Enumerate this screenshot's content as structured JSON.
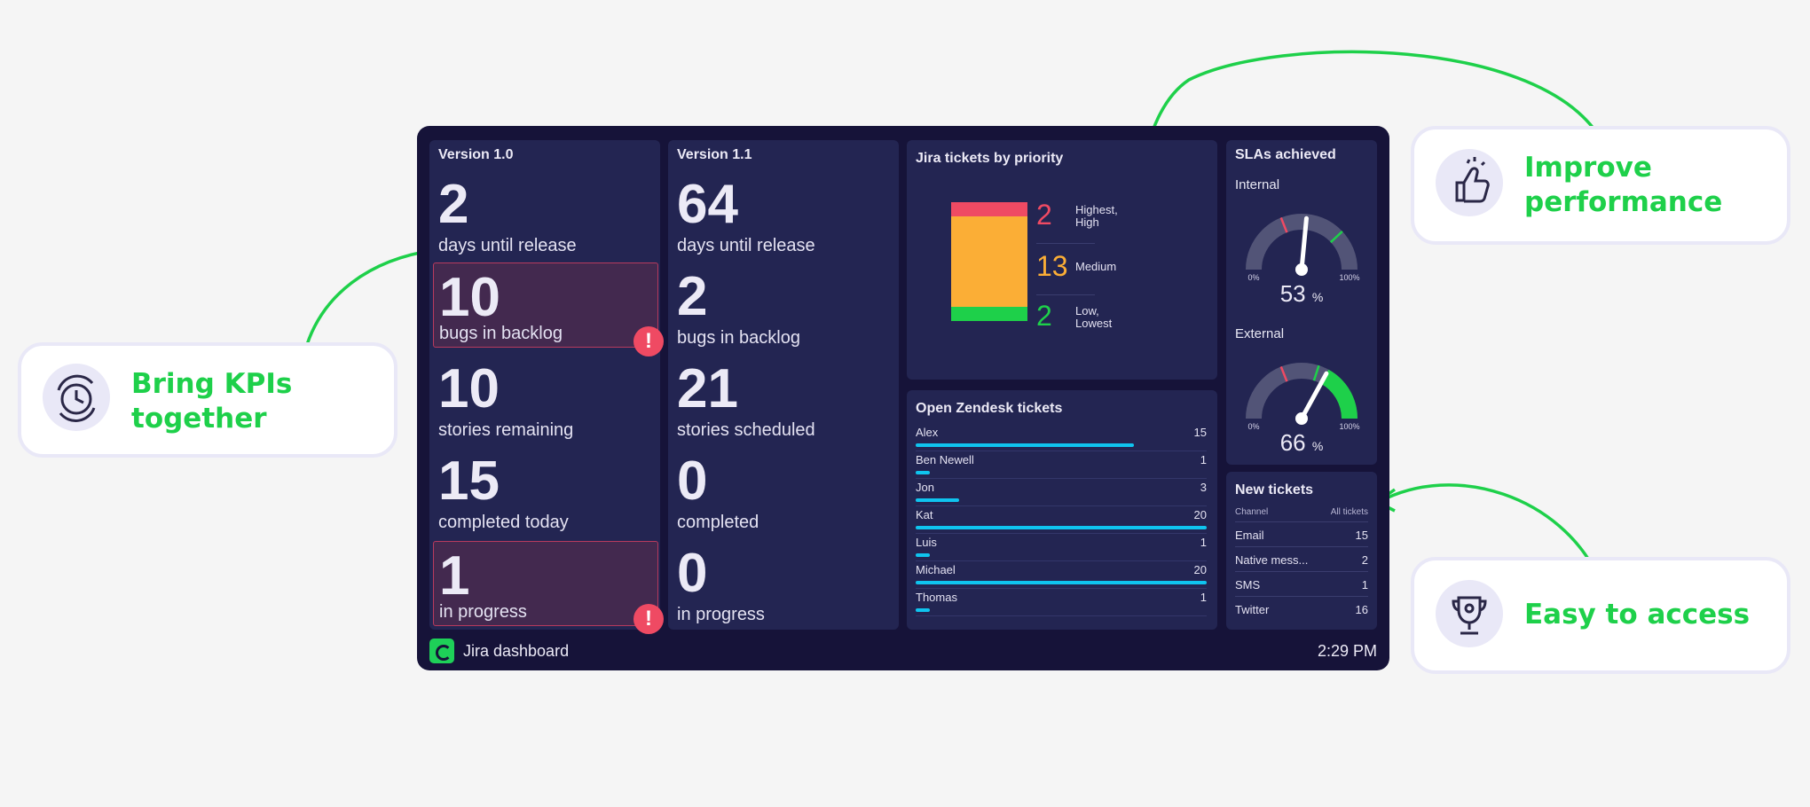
{
  "colors": {
    "accent_green": "#1ed04a",
    "dashboard_bg": "#161339",
    "panel_bg": "#232552",
    "alert_red": "#ef4a63",
    "bar_cyan": "#0fc4ef",
    "priority_high": "#ef4a63",
    "priority_medium": "#fbae36",
    "priority_low": "#1ed04a"
  },
  "version10": {
    "title": "Version 1.0",
    "kpis": [
      {
        "value": "2",
        "label": "days until release",
        "alert": false
      },
      {
        "value": "10",
        "label": "bugs in backlog",
        "alert": true
      },
      {
        "value": "10",
        "label": "stories remaining",
        "alert": false
      },
      {
        "value": "15",
        "label": "completed today",
        "alert": false
      },
      {
        "value": "1",
        "label": "in progress",
        "alert": true
      }
    ]
  },
  "version11": {
    "title": "Version 1.1",
    "kpis": [
      {
        "value": "64",
        "label": "days until release"
      },
      {
        "value": "2",
        "label": "bugs in backlog"
      },
      {
        "value": "21",
        "label": "stories scheduled"
      },
      {
        "value": "0",
        "label": "completed"
      },
      {
        "value": "0",
        "label": "in progress"
      }
    ]
  },
  "alert_symbol": "!",
  "priority": {
    "title": "Jira tickets by priority",
    "rows": [
      {
        "value": "2",
        "label1": "Highest,",
        "label2": "High",
        "color": "#ef4a63"
      },
      {
        "value": "13",
        "label1": "Medium",
        "label2": "",
        "color": "#fbae36"
      },
      {
        "value": "2",
        "label1": "Low,",
        "label2": "Lowest",
        "color": "#1ed04a"
      }
    ]
  },
  "zendesk": {
    "title": "Open Zendesk tickets",
    "max": 20,
    "rows": [
      {
        "name": "Alex",
        "value": 15
      },
      {
        "name": "Ben Newell",
        "value": 1
      },
      {
        "name": "Jon",
        "value": 3
      },
      {
        "name": "Kat",
        "value": 20
      },
      {
        "name": "Luis",
        "value": 1
      },
      {
        "name": "Michael",
        "value": 20
      },
      {
        "name": "Thomas",
        "value": 1
      }
    ]
  },
  "sla": {
    "title": "SLAs achieved",
    "internal": {
      "label": "Internal",
      "value": "53",
      "unit": "%",
      "min_label": "0%",
      "max_label": "100%",
      "fraction": 0.53
    },
    "external": {
      "label": "External",
      "value": "66",
      "unit": "%",
      "min_label": "0%",
      "max_label": "100%",
      "fraction": 0.66
    }
  },
  "new_tickets": {
    "title": "New tickets",
    "col1": "Channel",
    "col2": "All tickets",
    "rows": [
      {
        "name": "Email",
        "value": "15"
      },
      {
        "name": "Native mess...",
        "value": "2"
      },
      {
        "name": "SMS",
        "value": "1"
      },
      {
        "name": "Twitter",
        "value": "16"
      }
    ]
  },
  "footer": {
    "label": "Jira dashboard",
    "time": "2:29 PM"
  },
  "callouts": {
    "kpis_line1": "Bring KPIs",
    "kpis_line2": "together",
    "perf_line1": "Improve",
    "perf_line2": "performance",
    "access": "Easy to access"
  },
  "icons": {
    "kpis": "clock-cycle-icon",
    "perf": "thumbs-up-icon",
    "access": "trophy-icon"
  }
}
